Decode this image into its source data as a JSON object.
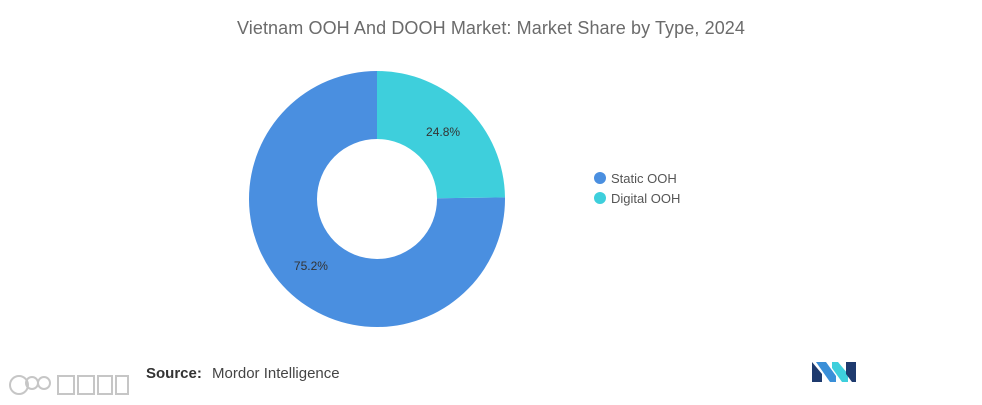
{
  "chart_data": {
    "type": "pie",
    "variant": "donut",
    "title": "Vietnam OOH And DOOH Market: Market Share by Type, 2024",
    "categories": [
      "Static OOH",
      "Digital OOH"
    ],
    "values": [
      75.2,
      24.8
    ],
    "labels": [
      "75.2%",
      "24.8%"
    ],
    "colors": [
      "#4a8fe0",
      "#3ecfdc"
    ],
    "legend_position": "right"
  },
  "legend": {
    "items": [
      {
        "label": "Static OOH",
        "color": "#4a8fe0"
      },
      {
        "label": "Digital OOH",
        "color": "#3ecfdc"
      }
    ]
  },
  "source": {
    "label": "Source:",
    "value": "Mordor Intelligence"
  },
  "logo": {
    "icon": "mordor-intelligence-logo-icon"
  },
  "watermark": {
    "icon": "watermark-logo-icon"
  }
}
